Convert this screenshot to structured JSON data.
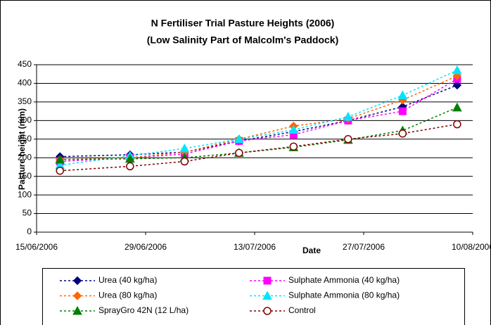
{
  "chart_data": {
    "type": "line",
    "title": "N Fertiliser Trial Pasture Heights (2006)",
    "subtitle": "(Low Salinity Part of Malcolm's Paddock)",
    "x_label": "Date",
    "y_label": "Pasture height (mm)",
    "x": [
      "18/06/2006",
      "27/06/2006",
      "04/07/2006",
      "11/07/2006",
      "18/07/2006",
      "25/07/2006",
      "01/08/2006",
      "08/08/2006"
    ],
    "xlim": [
      "15/06/2006",
      "10/08/2006"
    ],
    "xticks": [
      "15/06/2006",
      "29/06/2006",
      "13/07/2006",
      "27/07/2006",
      "10/08/2006"
    ],
    "ylim": [
      0,
      450
    ],
    "yticks": [
      0,
      50,
      100,
      150,
      200,
      250,
      300,
      350,
      400,
      450
    ],
    "grid": true,
    "legend": "bottom",
    "series": [
      {
        "name": "Urea (40 kg/ha)",
        "color": "#000080",
        "marker": "diamond",
        "values": [
          203,
          208,
          215,
          245,
          270,
          300,
          337,
          395
        ]
      },
      {
        "name": "Sulphate Ammonia (40 kg/ha)",
        "color": "#ff00ff",
        "marker": "square",
        "values": [
          190,
          200,
          210,
          245,
          262,
          300,
          325,
          412
        ]
      },
      {
        "name": "Urea (80 kg/ha)",
        "color": "#ff6600",
        "marker": "diamond",
        "values": [
          195,
          200,
          215,
          250,
          285,
          305,
          355,
          420
        ]
      },
      {
        "name": "Sulphate Ammonia (80 kg/ha)",
        "color": "#00e5ff",
        "marker": "triangle",
        "values": [
          180,
          205,
          225,
          250,
          275,
          310,
          368,
          435
        ]
      },
      {
        "name": "SprayGro 42N (12 L/ha)",
        "color": "#008000",
        "marker": "triangle",
        "values": [
          195,
          197,
          200,
          213,
          228,
          248,
          273,
          335
        ]
      },
      {
        "name": "Control",
        "color": "#800000",
        "marker": "circle",
        "values": [
          165,
          177,
          190,
          213,
          230,
          250,
          265,
          290
        ]
      }
    ]
  }
}
